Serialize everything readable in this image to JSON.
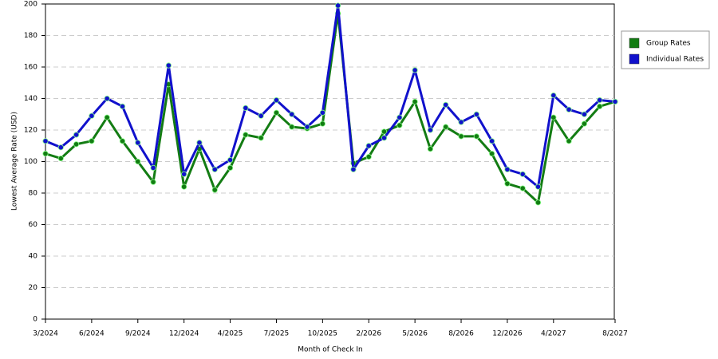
{
  "chart_data": {
    "type": "line",
    "x_label": "Month of Check In",
    "y_label": "Lowest Average Rate (USD)",
    "categories": [
      "3/2024",
      null,
      null,
      "6/2024",
      null,
      null,
      "9/2024",
      null,
      null,
      "12/2024",
      null,
      null,
      "4/2025",
      null,
      null,
      "7/2025",
      null,
      null,
      "10/2025",
      null,
      null,
      "2/2026",
      null,
      null,
      "5/2026",
      null,
      null,
      "8/2026",
      null,
      null,
      "12/2026",
      null,
      null,
      "4/2027",
      null,
      null,
      null,
      "8/2027"
    ],
    "series": [
      {
        "name": "Group Rates",
        "color": "#137c13",
        "values": [
          105,
          102,
          111,
          113,
          128,
          113,
          100,
          87,
          149,
          84,
          108,
          82,
          96,
          117,
          115,
          131,
          122,
          121,
          124,
          194,
          99,
          103,
          119,
          123,
          138,
          108,
          122,
          116,
          116,
          105,
          86,
          83,
          74,
          128,
          113,
          124,
          135,
          138
        ]
      },
      {
        "name": "Individual Rates",
        "color": "#1111cc",
        "values": [
          113,
          109,
          117,
          129,
          140,
          135,
          112,
          96,
          161,
          92,
          112,
          95,
          101,
          134,
          129,
          139,
          130,
          122,
          131,
          199,
          95,
          110,
          115,
          128,
          158,
          120,
          136,
          125,
          130,
          113,
          95,
          92,
          84,
          142,
          133,
          130,
          139,
          138
        ]
      }
    ],
    "ylim": [
      0,
      200
    ],
    "yticks": [
      0,
      20,
      40,
      60,
      80,
      100,
      120,
      140,
      160,
      180,
      200
    ],
    "grid": true
  }
}
